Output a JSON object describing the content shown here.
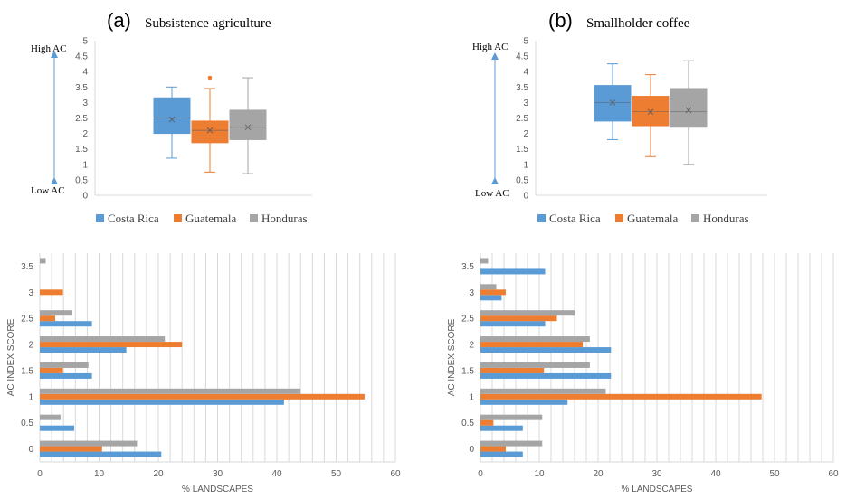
{
  "colors": {
    "costa_rica": "#5B9BD5",
    "guatemala": "#ED7D31",
    "honduras": "#A5A5A5",
    "arrow": "#5B9BD5",
    "grid": "#D9D9D9"
  },
  "chart_data": [
    {
      "type": "box",
      "panel": "(a)",
      "title": "Subsistence agriculture",
      "annot_high": "High AC",
      "annot_low": "Low AC",
      "ylim": [
        0,
        5
      ],
      "yticks": [
        "0",
        "0.5",
        "1",
        "1.5",
        "2",
        "2.5",
        "3",
        "3.5",
        "4",
        "4.5",
        "5"
      ],
      "legend": [
        "Costa Rica",
        "Guatemala",
        "Honduras"
      ],
      "series": [
        {
          "name": "Costa Rica",
          "min": 1.2,
          "q1": 2.0,
          "median": 2.5,
          "q3": 3.15,
          "max": 3.5,
          "mean": 2.45,
          "outliers": []
        },
        {
          "name": "Guatemala",
          "min": 0.75,
          "q1": 1.7,
          "median": 2.1,
          "q3": 2.4,
          "max": 3.45,
          "mean": 2.1,
          "outliers": [
            3.8
          ]
        },
        {
          "name": "Honduras",
          "min": 0.7,
          "q1": 1.8,
          "median": 2.2,
          "q3": 2.75,
          "max": 3.8,
          "mean": 2.2,
          "outliers": []
        }
      ]
    },
    {
      "type": "box",
      "panel": "(b)",
      "title": "Smallholder coffee",
      "annot_high": "High AC",
      "annot_low": "Low AC",
      "ylim": [
        0,
        5
      ],
      "yticks": [
        "0",
        "0.5",
        "1",
        "1.5",
        "2",
        "2.5",
        "3",
        "3.5",
        "4",
        "4.5",
        "5"
      ],
      "legend": [
        "Costa Rica",
        "Guatemala",
        "Honduras"
      ],
      "series": [
        {
          "name": "Costa Rica",
          "min": 1.8,
          "q1": 2.4,
          "median": 3.0,
          "q3": 3.55,
          "max": 4.25,
          "mean": 3.0,
          "outliers": []
        },
        {
          "name": "Guatemala",
          "min": 1.25,
          "q1": 2.25,
          "median": 2.7,
          "q3": 3.2,
          "max": 3.9,
          "mean": 2.7,
          "outliers": []
        },
        {
          "name": "Honduras",
          "min": 1.0,
          "q1": 2.2,
          "median": 2.7,
          "q3": 3.45,
          "max": 4.35,
          "mean": 2.75,
          "outliers": []
        }
      ]
    },
    {
      "type": "bar",
      "orientation": "horizontal",
      "ylabel": "AC INDEX SCORE",
      "xlabel": "% LANDSCAPES",
      "xlim": [
        0,
        60
      ],
      "xticks": [
        "0",
        "10",
        "20",
        "30",
        "40",
        "50",
        "60"
      ],
      "categories": [
        "0",
        "0.5",
        "1",
        "1.5",
        "2",
        "2.5",
        "3",
        "3.5"
      ],
      "series": [
        {
          "name": "Costa Rica",
          "values": [
            20.5,
            5.8,
            41.2,
            8.8,
            14.6,
            8.8,
            0,
            0
          ]
        },
        {
          "name": "Guatemala",
          "values": [
            10.5,
            0,
            54.8,
            3.9,
            24.0,
            2.6,
            3.9,
            0
          ]
        },
        {
          "name": "Honduras",
          "values": [
            16.4,
            3.5,
            44.0,
            8.2,
            21.1,
            5.5,
            0,
            1.0
          ]
        }
      ]
    },
    {
      "type": "bar",
      "orientation": "horizontal",
      "ylabel": "AC INDEX SCORE",
      "xlabel": "% LANDSCAPES",
      "xlim": [
        0,
        60
      ],
      "xticks": [
        "0",
        "10",
        "20",
        "30",
        "40",
        "50",
        "60"
      ],
      "categories": [
        "0",
        "0.5",
        "1",
        "1.5",
        "2",
        "2.5",
        "3",
        "3.5"
      ],
      "series": [
        {
          "name": "Costa Rica",
          "values": [
            7.2,
            7.2,
            14.8,
            22.2,
            22.2,
            11.0,
            3.6,
            11.0
          ]
        },
        {
          "name": "Guatemala",
          "values": [
            4.3,
            2.2,
            47.8,
            10.8,
            17.4,
            13.0,
            4.3,
            0
          ]
        },
        {
          "name": "Honduras",
          "values": [
            10.5,
            10.5,
            21.3,
            18.6,
            18.6,
            16.0,
            2.7,
            1.3
          ]
        }
      ]
    }
  ]
}
